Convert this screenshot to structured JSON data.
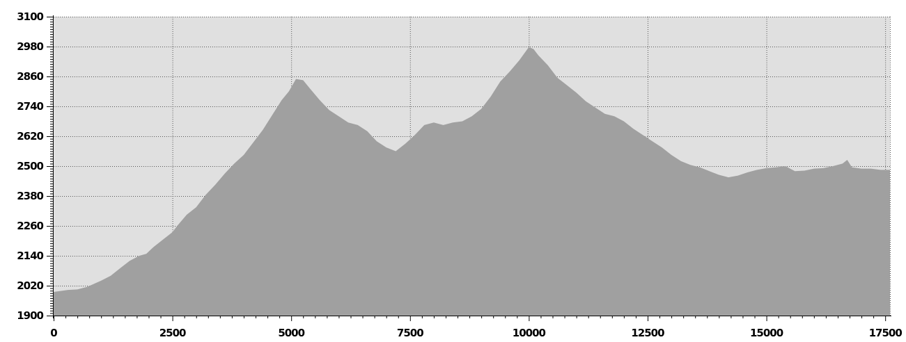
{
  "chart_data": {
    "type": "area",
    "title": "",
    "xlabel": "",
    "ylabel": "",
    "xlim": [
      0,
      17600
    ],
    "ylim": [
      1900,
      3100
    ],
    "grid": true,
    "x_ticks": [
      0,
      2500,
      5000,
      7500,
      10000,
      12500,
      15000,
      17500
    ],
    "y_ticks": [
      1900,
      2020,
      2140,
      2260,
      2380,
      2500,
      2620,
      2740,
      2860,
      2980,
      3100
    ],
    "x_tick_labels": [
      "0",
      "2500",
      "5000",
      "7500",
      "10000",
      "12500",
      "15000",
      "17500"
    ],
    "y_tick_labels": [
      "1900",
      "2020",
      "2140",
      "2260",
      "2380",
      "2500",
      "2620",
      "2740",
      "2860",
      "2980",
      "3100"
    ],
    "colors": {
      "area": "#a0a0a0",
      "plot_background": "#e0e0e0",
      "grid": "#555555",
      "axis": "#000000"
    },
    "series": [
      {
        "x": [
          0,
          300,
          500,
          700,
          1000,
          1200,
          1400,
          1600,
          1800,
          1950,
          2100,
          2300,
          2500,
          2600,
          2800,
          3000,
          3200,
          3400,
          3600,
          3800,
          4000,
          4200,
          4400,
          4600,
          4800,
          4950,
          5100,
          5250,
          5400,
          5600,
          5800,
          6000,
          6200,
          6400,
          6600,
          6800,
          7000,
          7200,
          7400,
          7600,
          7800,
          8000,
          8200,
          8400,
          8600,
          8800,
          9000,
          9200,
          9400,
          9600,
          9800,
          10000,
          10100,
          10200,
          10400,
          10600,
          10800,
          11000,
          11200,
          11400,
          11600,
          11800,
          12000,
          12200,
          12400,
          12600,
          12800,
          13000,
          13200,
          13400,
          13600,
          13800,
          14000,
          14200,
          14400,
          14600,
          14800,
          15000,
          15200,
          15400,
          15600,
          15800,
          16000,
          16200,
          16400,
          16600,
          16700,
          16800,
          17000,
          17200,
          17400,
          17600
        ],
        "y": [
          1995,
          2003,
          2005,
          2015,
          2040,
          2060,
          2090,
          2120,
          2140,
          2148,
          2175,
          2205,
          2235,
          2260,
          2305,
          2335,
          2385,
          2425,
          2470,
          2510,
          2545,
          2595,
          2645,
          2705,
          2765,
          2800,
          2850,
          2845,
          2810,
          2765,
          2725,
          2700,
          2675,
          2665,
          2640,
          2600,
          2575,
          2560,
          2590,
          2625,
          2665,
          2675,
          2665,
          2675,
          2680,
          2700,
          2730,
          2780,
          2840,
          2880,
          2925,
          2978,
          2970,
          2945,
          2905,
          2855,
          2825,
          2795,
          2760,
          2735,
          2710,
          2700,
          2680,
          2650,
          2625,
          2600,
          2575,
          2545,
          2520,
          2505,
          2495,
          2480,
          2465,
          2455,
          2462,
          2475,
          2485,
          2492,
          2495,
          2500,
          2480,
          2482,
          2490,
          2492,
          2500,
          2510,
          2525,
          2495,
          2490,
          2490,
          2485,
          2485
        ]
      }
    ]
  }
}
